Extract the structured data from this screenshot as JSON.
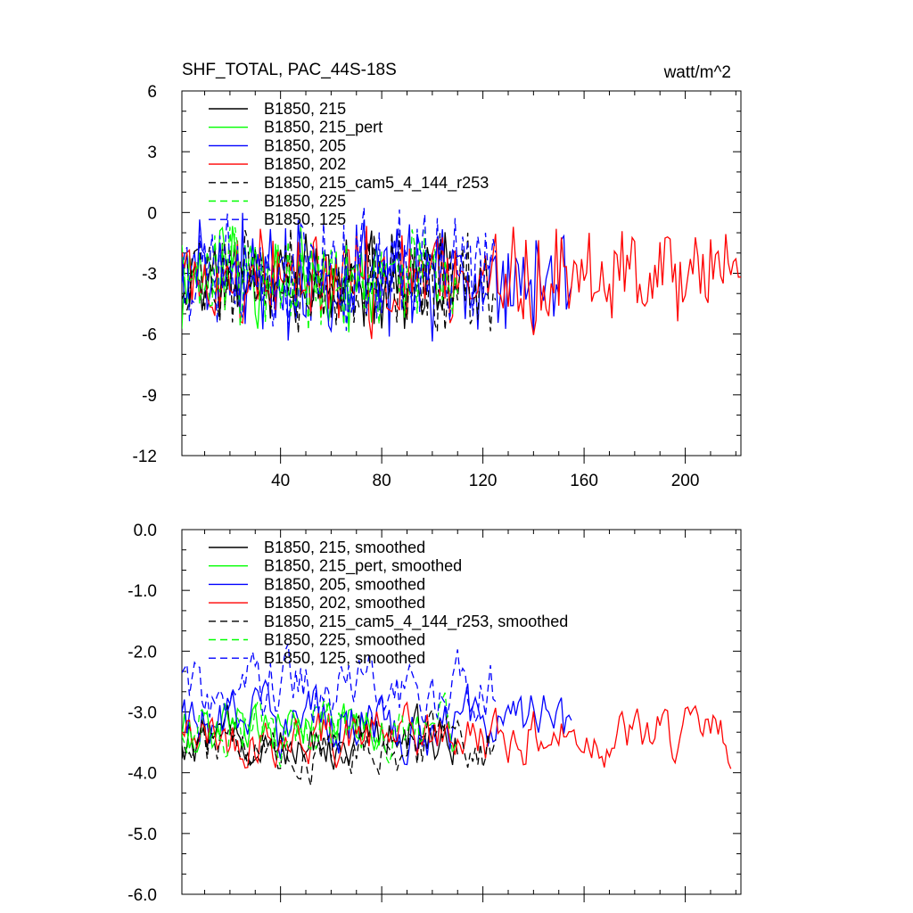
{
  "chart_data": [
    {
      "type": "line",
      "title": "SHF_TOTAL, PAC_44S-18S",
      "units": "watt/m^2",
      "xlim": [
        1,
        222
      ],
      "ylim": [
        -12,
        6
      ],
      "xticks": [
        40,
        80,
        120,
        160,
        200
      ],
      "xtick_labels": [
        "40",
        "80",
        "120",
        "160",
        "200"
      ],
      "yticks": [
        6,
        3,
        0,
        -3,
        -6,
        -9,
        -12
      ],
      "ytick_labels": [
        "6",
        "3",
        "0",
        "-3",
        "-6",
        "-9",
        "-12"
      ],
      "legend_position": "top-left",
      "series": [
        {
          "name": "B1850, 215",
          "color": "#000000",
          "dash": "solid",
          "length": 110,
          "mean": -3.3,
          "amp": 1.7,
          "seed": 11
        },
        {
          "name": "B1850, 215_pert",
          "color": "#00ff00",
          "dash": "solid",
          "length": 80,
          "mean": -3.2,
          "amp": 1.9,
          "seed": 23
        },
        {
          "name": "B1850, 205",
          "color": "#0000ff",
          "dash": "solid",
          "length": 155,
          "mean": -3.1,
          "amp": 2.1,
          "seed": 37
        },
        {
          "name": "B1850, 202",
          "color": "#ff0000",
          "dash": "solid",
          "length": 222,
          "mean": -3.3,
          "amp": 1.9,
          "seed": 41
        },
        {
          "name": "B1850, 215_cam5_4_144_r253",
          "color": "#000000",
          "dash": "dashed",
          "length": 125,
          "mean": -3.4,
          "amp": 1.8,
          "seed": 53
        },
        {
          "name": "B1850, 225",
          "color": "#00ff00",
          "dash": "dashed",
          "length": 110,
          "mean": -3.2,
          "amp": 1.8,
          "seed": 67
        },
        {
          "name": "B1850, 125",
          "color": "#0000ff",
          "dash": "dashed",
          "length": 125,
          "mean": -2.8,
          "amp": 2.0,
          "seed": 79
        }
      ]
    },
    {
      "type": "line",
      "title": "",
      "xlim": [
        1,
        222
      ],
      "ylim": [
        -6,
        0
      ],
      "xticks": [
        40,
        80,
        120,
        160,
        200
      ],
      "yticks": [
        0,
        -1,
        -2,
        -3,
        -4,
        -5,
        -6
      ],
      "ytick_labels": [
        "0.0",
        "-1.0",
        "-2.0",
        "-3.0",
        "-4.0",
        "-5.0",
        "-6.0"
      ],
      "legend_position": "top-left",
      "series": [
        {
          "name": "B1850, 215, smoothed",
          "color": "#000000",
          "dash": "solid",
          "length": 110,
          "mean": -3.4,
          "amp": 0.5,
          "seed": 12
        },
        {
          "name": "B1850, 215_pert, smoothed",
          "color": "#00ff00",
          "dash": "solid",
          "length": 80,
          "mean": -3.3,
          "amp": 0.5,
          "seed": 24
        },
        {
          "name": "B1850, 205, smoothed",
          "color": "#0000ff",
          "dash": "solid",
          "length": 155,
          "mean": -3.2,
          "amp": 0.6,
          "seed": 38
        },
        {
          "name": "B1850, 202, smoothed",
          "color": "#ff0000",
          "dash": "solid",
          "length": 218,
          "mean": -3.4,
          "amp": 0.5,
          "seed": 42
        },
        {
          "name": "B1850, 215_cam5_4_144_r253, smoothed",
          "color": "#000000",
          "dash": "dashed",
          "length": 125,
          "mean": -3.6,
          "amp": 0.5,
          "seed": 54
        },
        {
          "name": "B1850, 225, smoothed",
          "color": "#00ff00",
          "dash": "dashed",
          "length": 110,
          "mean": -3.3,
          "amp": 0.5,
          "seed": 68
        },
        {
          "name": "B1850, 125, smoothed",
          "color": "#0000ff",
          "dash": "dashed",
          "length": 125,
          "mean": -2.6,
          "amp": 0.6,
          "seed": 80
        }
      ]
    }
  ]
}
